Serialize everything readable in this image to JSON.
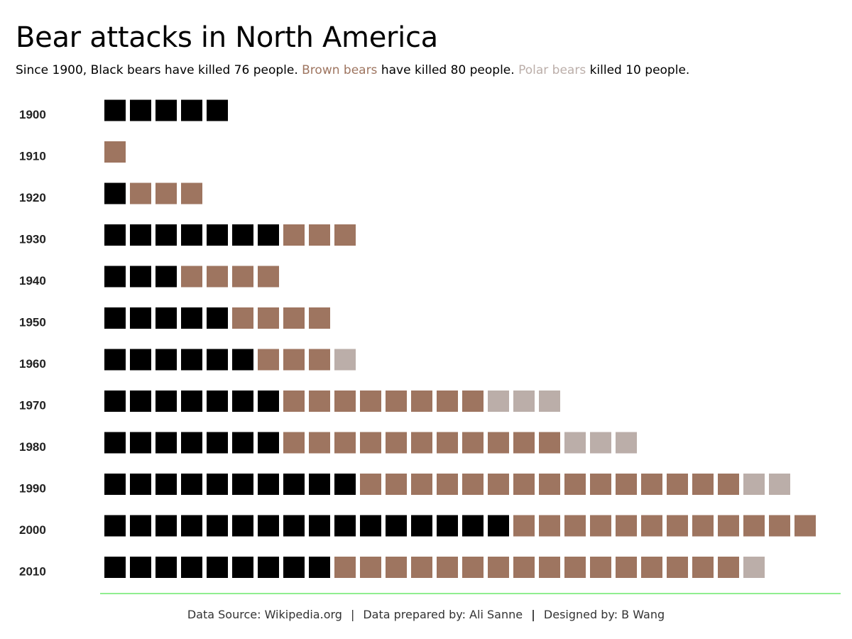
{
  "header": {
    "title": "Bear attacks in North America",
    "subtitle_part1": "Since 1900, Black bears have killed 76 people. ",
    "subtitle_brown": "Brown bears",
    "subtitle_part2": " have killed 80 people. ",
    "subtitle_polar": "Polar bears",
    "subtitle_part3": " killed 10 people."
  },
  "footer": {
    "source": "Data Source: Wikipedia.org",
    "sep1": "|",
    "prepared": "Data prepared by: Ali Sanne",
    "sep2": "|",
    "designed": "Designed by: B Wang"
  },
  "colors": {
    "black": "#000000",
    "brown": "#9e7560",
    "polar": "#bbaea9",
    "baseline": "#90ee90"
  },
  "chart_data": {
    "type": "bar",
    "subtype": "stacked-unit-squares",
    "categories": [
      "1900",
      "1910",
      "1920",
      "1930",
      "1940",
      "1950",
      "1960",
      "1970",
      "1980",
      "1990",
      "2000",
      "2010"
    ],
    "series": [
      {
        "key": "black",
        "values": [
          5,
          0,
          1,
          7,
          3,
          5,
          6,
          7,
          7,
          10,
          16,
          9
        ]
      },
      {
        "key": "brown",
        "values": [
          0,
          1,
          3,
          3,
          4,
          4,
          3,
          8,
          11,
          15,
          12,
          16
        ]
      },
      {
        "key": "polar",
        "values": [
          0,
          0,
          0,
          0,
          0,
          0,
          1,
          3,
          3,
          2,
          0,
          1
        ]
      }
    ],
    "orientation": "horizontal",
    "grid": false,
    "legend": "none"
  }
}
